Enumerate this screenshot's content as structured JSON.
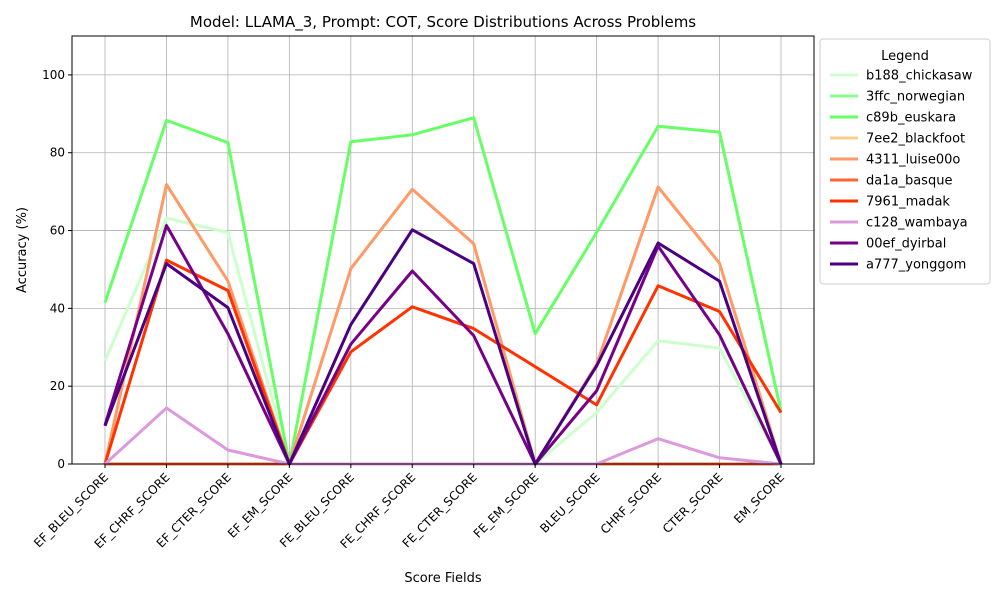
{
  "chart_data": {
    "type": "line",
    "title": "Model: LLAMA_3, Prompt: COT, Score Distributions Across Problems",
    "xlabel": "Score Fields",
    "ylabel": "Accuracy (%)",
    "ylim": [
      0,
      110
    ],
    "yticks": [
      0,
      20,
      40,
      60,
      80,
      100
    ],
    "grid": true,
    "legend_title": "Legend",
    "legend_position": "outside-right",
    "categories": [
      "EF_BLEU_SCORE",
      "EF_CHRF_SCORE",
      "EF_CTER_SCORE",
      "EF_EM_SCORE",
      "FE_BLEU_SCORE",
      "FE_CHRF_SCORE",
      "FE_CTER_SCORE",
      "FE_EM_SCORE",
      "BLEU_SCORE",
      "CHRF_SCORE",
      "CTER_SCORE",
      "EM_SCORE"
    ],
    "series": [
      {
        "name": "b188_chickasaw",
        "color": "#ccffcc",
        "values": [
          26.5,
          63.2,
          59.5,
          0,
          0,
          0,
          0,
          0,
          13.2,
          31.7,
          29.8,
          0
        ]
      },
      {
        "name": "3ffc_norwegian",
        "color": "#88ff88",
        "values": [
          0,
          0,
          0,
          0,
          0,
          0,
          0,
          0,
          0,
          0,
          0,
          0
        ]
      },
      {
        "name": "c89b_euskara",
        "color": "#66ff66",
        "values": [
          41.5,
          88.3,
          82.6,
          0,
          82.8,
          84.6,
          89.0,
          33.5,
          59.5,
          86.8,
          85.3,
          13.5
        ]
      },
      {
        "name": "7ee2_blackfoot",
        "color": "#ffcc88",
        "values": [
          0,
          0,
          0,
          0,
          0,
          0,
          0,
          0,
          0,
          0,
          0,
          0
        ]
      },
      {
        "name": "4311_luise00o",
        "color": "#ff9966",
        "values": [
          0,
          71.8,
          47.0,
          0,
          50.2,
          70.6,
          56.6,
          0,
          25.6,
          71.2,
          51.6,
          0
        ]
      },
      {
        "name": "da1a_basque",
        "color": "#ff6633",
        "values": [
          0,
          0,
          0,
          0,
          0,
          0,
          0,
          0,
          0,
          0,
          0,
          0
        ]
      },
      {
        "name": "7961_madak",
        "color": "#ff3300",
        "values": [
          0,
          52.4,
          44.6,
          0,
          28.8,
          40.4,
          34.8,
          25.0,
          15.2,
          45.8,
          39.2,
          13.2
        ]
      },
      {
        "name": "c128_wambaya",
        "color": "#dd99dd",
        "values": [
          0,
          14.4,
          3.6,
          0,
          0,
          0,
          0,
          0,
          0,
          6.5,
          1.6,
          0
        ]
      },
      {
        "name": "00ef_dyirbal",
        "color": "#770088",
        "values": [
          10.0,
          61.3,
          33.5,
          0,
          30.8,
          49.6,
          33.0,
          0,
          18.8,
          56.0,
          33.2,
          0
        ]
      },
      {
        "name": "a777_yonggom",
        "color": "#4b0082",
        "values": [
          9.8,
          51.5,
          40.2,
          0,
          35.8,
          60.2,
          51.5,
          0,
          25.2,
          56.8,
          47.0,
          0
        ]
      }
    ]
  }
}
